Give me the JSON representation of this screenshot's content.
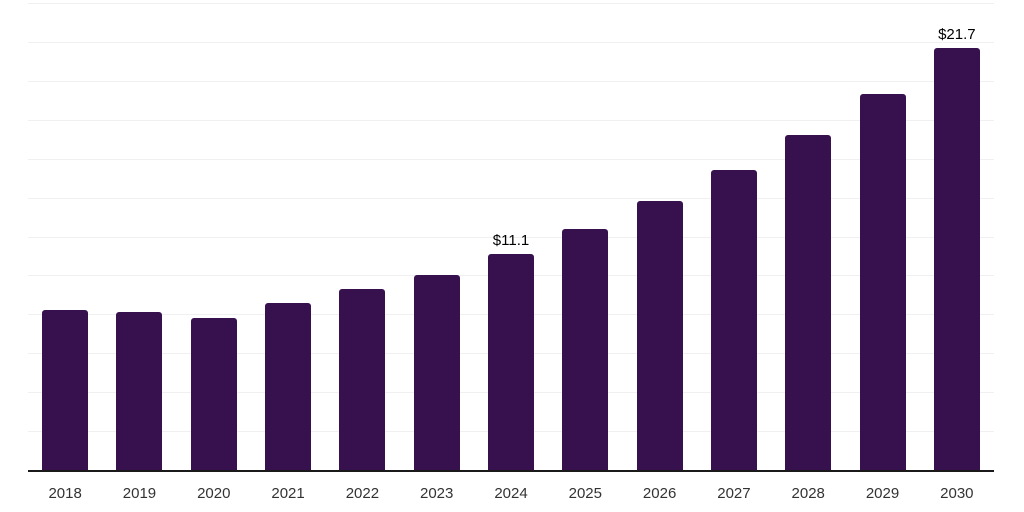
{
  "chart_data": {
    "type": "bar",
    "title": "",
    "xlabel": "",
    "ylabel": "",
    "categories": [
      "2018",
      "2019",
      "2020",
      "2021",
      "2022",
      "2023",
      "2024",
      "2025",
      "2026",
      "2027",
      "2028",
      "2029",
      "2030"
    ],
    "values": [
      8.2,
      8.1,
      7.8,
      8.6,
      9.3,
      10.0,
      11.1,
      12.4,
      13.8,
      15.4,
      17.2,
      19.3,
      21.7
    ],
    "value_labels": {
      "2024": "$11.1",
      "2030": "$21.7"
    },
    "value_prefix": "$",
    "ylim": [
      0,
      24
    ],
    "gridline_step": 2,
    "grid": "horizontal",
    "legend_position": "none"
  },
  "colors": {
    "bar": "#36114E",
    "gridline": "#f0f0f0",
    "axis_line": "#1a1a1a",
    "tick_label": "#333333",
    "data_label": "#000000",
    "background": "#ffffff"
  }
}
